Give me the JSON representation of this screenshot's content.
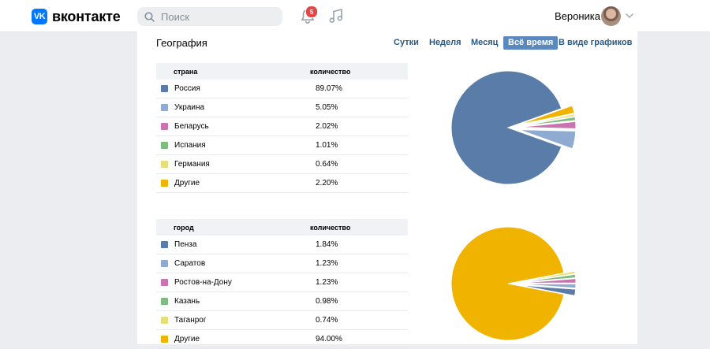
{
  "header": {
    "logo_mark": "VK",
    "logo_text": "вконтакте",
    "search_placeholder": "Поиск",
    "notifications_count": "5",
    "user_name": "Вероника"
  },
  "section": {
    "title": "География",
    "periods": [
      "Сутки",
      "Неделя",
      "Месяц",
      "Всё время",
      "В виде графиков"
    ],
    "active_period": "Всё время"
  },
  "colors": {
    "blue": "#5a7ca8",
    "light_blue": "#8fabd1",
    "pink": "#c973b0",
    "green": "#7fbc7f",
    "yellow": "#e6e07a",
    "orange": "#f0b400"
  },
  "countries": {
    "header_name": "страна",
    "header_value": "количество",
    "rows": [
      {
        "name": "Россия",
        "value": "89.07%",
        "color": "#5a7ca8"
      },
      {
        "name": "Украина",
        "value": "5.05%",
        "color": "#8fabd1"
      },
      {
        "name": "Беларусь",
        "value": "2.02%",
        "color": "#c973b0"
      },
      {
        "name": "Испания",
        "value": "1.01%",
        "color": "#7fbc7f"
      },
      {
        "name": "Германия",
        "value": "0.64%",
        "color": "#e6e07a"
      },
      {
        "name": "Другие",
        "value": "2.20%",
        "color": "#f0b400"
      }
    ]
  },
  "cities": {
    "header_name": "город",
    "header_value": "количество",
    "rows": [
      {
        "name": "Пенза",
        "value": "1.84%",
        "color": "#5a7ca8"
      },
      {
        "name": "Саратов",
        "value": "1.23%",
        "color": "#8fabd1"
      },
      {
        "name": "Ростов-на-Дону",
        "value": "1.23%",
        "color": "#c973b0"
      },
      {
        "name": "Казань",
        "value": "0.98%",
        "color": "#7fbc7f"
      },
      {
        "name": "Таганрог",
        "value": "0.74%",
        "color": "#e6e07a"
      },
      {
        "name": "Другие",
        "value": "94.00%",
        "color": "#f0b400"
      }
    ]
  },
  "chart_data": [
    {
      "type": "pie",
      "categories": [
        "Россия",
        "Украина",
        "Беларусь",
        "Испания",
        "Германия",
        "Другие"
      ],
      "values": [
        89.07,
        5.05,
        2.02,
        1.01,
        0.64,
        2.2
      ],
      "colors": [
        "#5a7ca8",
        "#8fabd1",
        "#c973b0",
        "#7fbc7f",
        "#e6e07a",
        "#f0b400"
      ]
    },
    {
      "type": "pie",
      "categories": [
        "Пенза",
        "Саратов",
        "Ростов-на-Дону",
        "Казань",
        "Таганрог",
        "Другие"
      ],
      "values": [
        1.84,
        1.23,
        1.23,
        0.98,
        0.74,
        94.0
      ],
      "colors": [
        "#5a7ca8",
        "#8fabd1",
        "#c973b0",
        "#7fbc7f",
        "#e6e07a",
        "#f0b400"
      ]
    }
  ]
}
